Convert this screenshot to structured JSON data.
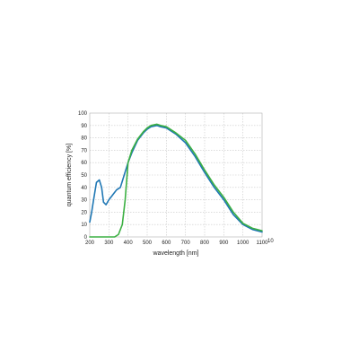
{
  "chart_data": {
    "type": "line",
    "title": "",
    "xlabel": "wavelength [nm]",
    "ylabel": "quantum efficiency [%]",
    "xlim": [
      200,
      1100
    ],
    "ylim": [
      0,
      100
    ],
    "x_ticks": [
      200,
      300,
      400,
      500,
      600,
      700,
      800,
      900,
      1000,
      1100
    ],
    "y_ticks": [
      0,
      10,
      20,
      30,
      40,
      50,
      60,
      70,
      80,
      90,
      100
    ],
    "x_overflow_label": "10",
    "grid": true,
    "legend": "none",
    "series": [
      {
        "color": "#1f77b4",
        "x": [
          200,
          210,
          220,
          235,
          250,
          262,
          272,
          285,
          300,
          320,
          340,
          360,
          380,
          400,
          420,
          450,
          480,
          500,
          520,
          550,
          570,
          600,
          650,
          700,
          750,
          800,
          850,
          900,
          950,
          1000,
          1050,
          1100
        ],
        "y": [
          12,
          20,
          30,
          44,
          46,
          40,
          28,
          26,
          30,
          34,
          38,
          40,
          50,
          60,
          68,
          78,
          84,
          87,
          89,
          90,
          89,
          88,
          83,
          76,
          65,
          52,
          40,
          30,
          18,
          10,
          6,
          4
        ]
      },
      {
        "color": "#3cb043",
        "x": [
          200,
          250,
          300,
          330,
          350,
          370,
          385,
          400,
          420,
          450,
          480,
          500,
          520,
          550,
          570,
          600,
          650,
          700,
          750,
          800,
          850,
          900,
          950,
          1000,
          1050,
          1100
        ],
        "y": [
          0,
          0,
          0,
          0,
          2,
          10,
          30,
          60,
          70,
          79,
          85,
          88,
          90,
          91,
          90,
          89,
          84,
          78,
          67,
          54,
          42,
          32,
          20,
          11,
          7,
          5
        ]
      }
    ]
  }
}
